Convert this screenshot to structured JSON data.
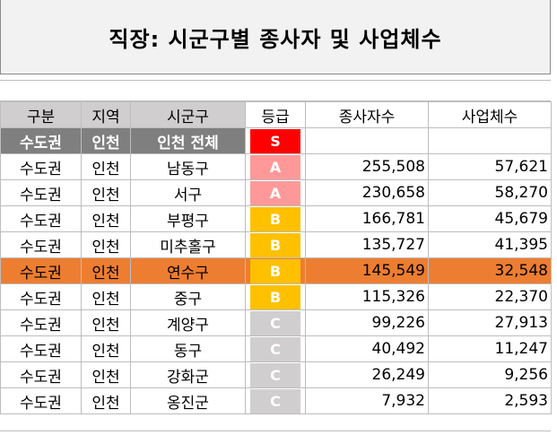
{
  "title": "직장: 시군구별 종사자 및 사업체수",
  "headers": {
    "region_group": "구분",
    "area": "지역",
    "district": "시군구",
    "grade": "등급",
    "workers": "종사자수",
    "businesses": "사업체수"
  },
  "total_row": {
    "region_group": "수도권",
    "area": "인천",
    "district": "인천 전체",
    "grade": "S",
    "workers": "",
    "businesses": ""
  },
  "rows": [
    {
      "region_group": "수도권",
      "area": "인천",
      "district": "남동구",
      "grade": "A",
      "workers": "255,508",
      "businesses": "57,621"
    },
    {
      "region_group": "수도권",
      "area": "인천",
      "district": "서구",
      "grade": "A",
      "workers": "230,658",
      "businesses": "58,270"
    },
    {
      "region_group": "수도권",
      "area": "인천",
      "district": "부평구",
      "grade": "B",
      "workers": "166,781",
      "businesses": "45,679"
    },
    {
      "region_group": "수도권",
      "area": "인천",
      "district": "미추홀구",
      "grade": "B",
      "workers": "135,727",
      "businesses": "41,395"
    },
    {
      "region_group": "수도권",
      "area": "인천",
      "district": "연수구",
      "grade": "B",
      "workers": "145,549",
      "businesses": "32,548",
      "highlighted": true
    },
    {
      "region_group": "수도권",
      "area": "인천",
      "district": "중구",
      "grade": "B",
      "workers": "115,326",
      "businesses": "22,370"
    },
    {
      "region_group": "수도권",
      "area": "인천",
      "district": "계양구",
      "grade": "C",
      "workers": "99,226",
      "businesses": "27,913"
    },
    {
      "region_group": "수도권",
      "area": "인천",
      "district": "동구",
      "grade": "C",
      "workers": "40,492",
      "businesses": "11,247"
    },
    {
      "region_group": "수도권",
      "area": "인천",
      "district": "강화군",
      "grade": "C",
      "workers": "26,249",
      "businesses": "9,256"
    },
    {
      "region_group": "수도권",
      "area": "인천",
      "district": "옹진군",
      "grade": "C",
      "workers": "7,932",
      "businesses": "2,593"
    }
  ],
  "colors": {
    "grade_S": "#ff0000",
    "grade_A": "#ff9999",
    "grade_B": "#ffc000",
    "grade_C": "#d0cece",
    "highlight": "#ed7d31",
    "header_bg": "#d0cece",
    "total_bg": "#7f7f7f"
  }
}
